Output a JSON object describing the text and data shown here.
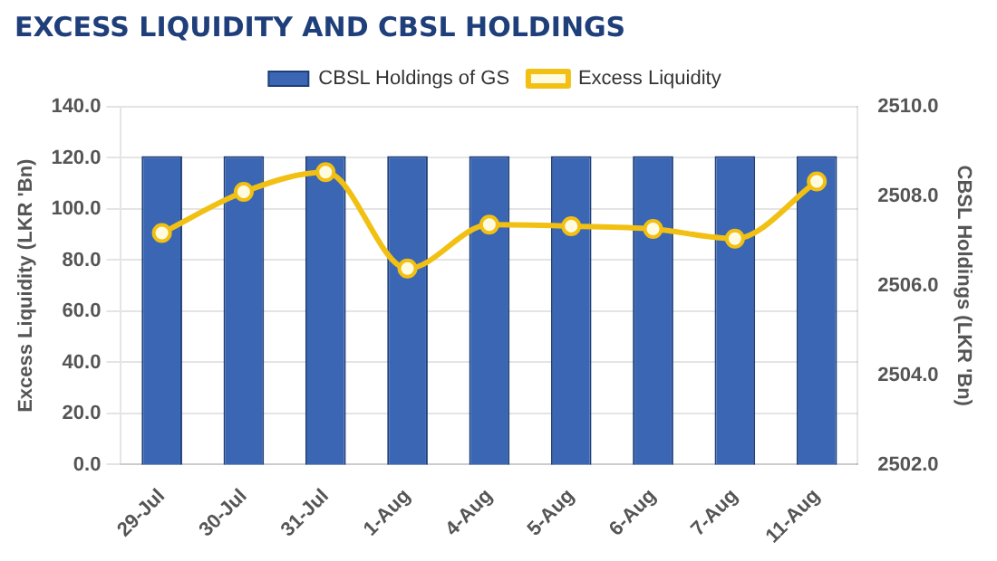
{
  "chart_data": {
    "type": "bar",
    "title": "EXCESS LIQUIDITY AND CBSL HOLDINGS",
    "ylabel": "Excess Liquidity (LKR 'Bn)",
    "y2label": "CBSL Holdings (LKR 'Bn)",
    "categories": [
      "29-Jul",
      "30-Jul",
      "31-Jul",
      "1-Aug",
      "4-Aug",
      "5-Aug",
      "6-Aug",
      "7-Aug",
      "11-Aug"
    ],
    "series": [
      {
        "name": "CBSL Holdings of GS",
        "axis": "y2",
        "color": "#3a66b4",
        "values": [
          2508.9,
          2508.9,
          2508.9,
          2508.9,
          2508.9,
          2508.9,
          2508.9,
          2508.9,
          2508.9
        ]
      },
      {
        "name": "Excess Liquidity",
        "type": "line",
        "axis": "y",
        "color": "#f2c013",
        "values": [
          90.6,
          106.7,
          114.4,
          76.7,
          93.9,
          93.3,
          92.2,
          88.4,
          110.8
        ]
      }
    ],
    "ylim": [
      0,
      140
    ],
    "yticks": [
      {
        "value": 0,
        "label": "0.0"
      },
      {
        "value": 20,
        "label": "20.0"
      },
      {
        "value": 40,
        "label": "40.0"
      },
      {
        "value": 60,
        "label": "60.0"
      },
      {
        "value": 80,
        "label": "80.0"
      },
      {
        "value": 100,
        "label": "100.0"
      },
      {
        "value": 120,
        "label": "120.0"
      },
      {
        "value": 140,
        "label": "140.0"
      }
    ],
    "y2lim": [
      2502,
      2510
    ],
    "y2ticks": [
      {
        "value": 2502,
        "label": "2502.0"
      },
      {
        "value": 2504,
        "label": "2504.0"
      },
      {
        "value": 2506,
        "label": "2506.0"
      },
      {
        "value": 2508,
        "label": "2508.0"
      },
      {
        "value": 2510,
        "label": "2510.0"
      }
    ],
    "grid": "y",
    "legend": "top",
    "marker": "circle"
  }
}
